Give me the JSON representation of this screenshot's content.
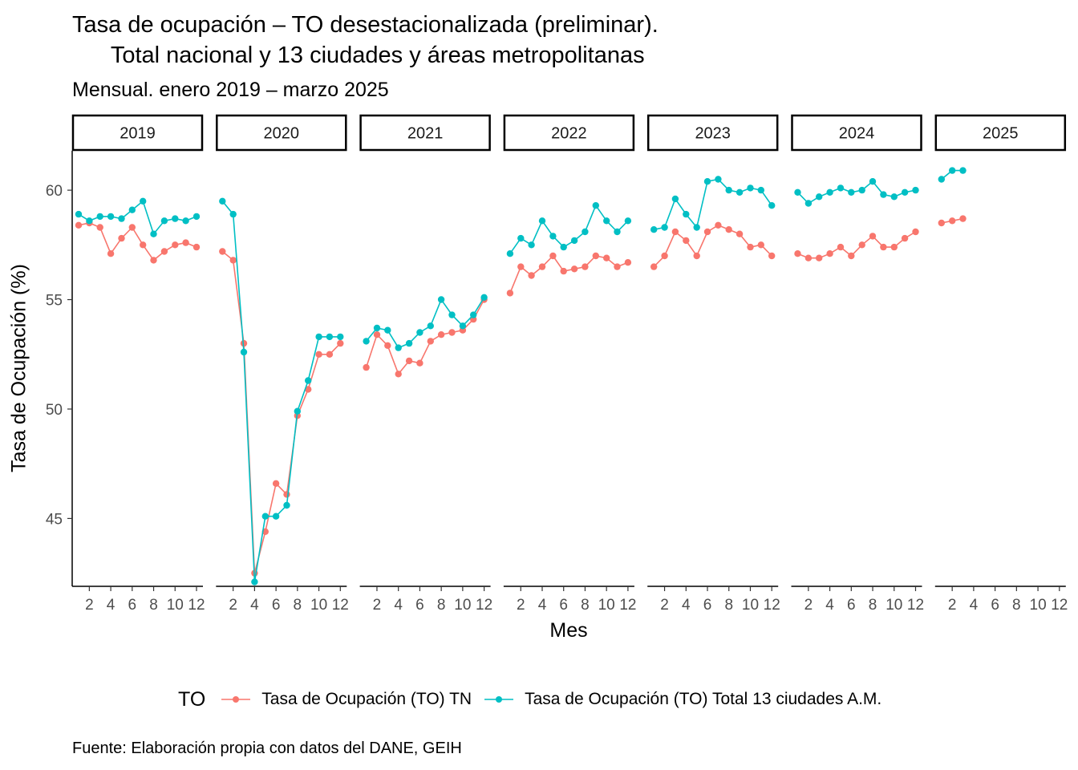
{
  "chart_data": {
    "type": "line",
    "title": "Tasa de ocupación – TO desestacionalizada (preliminar).\n      Total nacional y 13 ciudades y áreas metropolitanas",
    "subtitle": "Mensual. enero 2019 – marzo 2025",
    "xlabel": "Mes",
    "ylabel": "Tasa de Ocupación (%)",
    "caption": "Fuente: Elaboración propia con datos del DANE, GEIH",
    "legend_title": "TO",
    "legend_position": "bottom",
    "grid": false,
    "facets": [
      "2019",
      "2020",
      "2021",
      "2022",
      "2023",
      "2024",
      "2025"
    ],
    "x_range": [
      1,
      12
    ],
    "x_ticks": [
      2,
      4,
      6,
      8,
      10,
      12
    ],
    "ylim": [
      41.9,
      61.8
    ],
    "y_ticks": [
      45,
      50,
      55,
      60
    ],
    "series": [
      {
        "name": "Tasa de Ocupación (TO) TN",
        "color": "#F8766D",
        "values": {
          "2019": [
            58.4,
            58.5,
            58.3,
            57.1,
            57.8,
            58.3,
            57.5,
            56.8,
            57.2,
            57.5,
            57.6,
            57.4
          ],
          "2020": [
            57.2,
            56.8,
            53.0,
            42.5,
            44.4,
            46.6,
            46.1,
            49.7,
            50.9,
            52.5,
            52.5,
            53.0
          ],
          "2021": [
            51.9,
            53.4,
            52.9,
            51.6,
            52.2,
            52.1,
            53.1,
            53.4,
            53.5,
            53.6,
            54.1,
            55.0
          ],
          "2022": [
            55.3,
            56.5,
            56.1,
            56.5,
            57.0,
            56.3,
            56.4,
            56.5,
            57.0,
            56.9,
            56.5,
            56.7
          ],
          "2023": [
            56.5,
            57.0,
            58.1,
            57.7,
            57.0,
            58.1,
            58.4,
            58.2,
            58.0,
            57.4,
            57.5,
            57.0
          ],
          "2024": [
            57.1,
            56.9,
            56.9,
            57.1,
            57.4,
            57.0,
            57.5,
            57.9,
            57.4,
            57.4,
            57.8,
            58.1
          ],
          "2025": [
            58.5,
            58.6,
            58.7
          ]
        }
      },
      {
        "name": "Tasa de Ocupación (TO) Total 13 ciudades A.M.",
        "color": "#00BFC4",
        "values": {
          "2019": [
            58.9,
            58.6,
            58.8,
            58.8,
            58.7,
            59.1,
            59.5,
            58.0,
            58.6,
            58.7,
            58.6,
            58.8
          ],
          "2020": [
            59.5,
            58.9,
            52.6,
            42.1,
            45.1,
            45.1,
            45.6,
            49.9,
            51.3,
            53.3,
            53.3,
            53.3
          ],
          "2021": [
            53.1,
            53.7,
            53.6,
            52.8,
            53.0,
            53.5,
            53.8,
            55.0,
            54.3,
            53.8,
            54.3,
            55.1
          ],
          "2022": [
            57.1,
            57.8,
            57.5,
            58.6,
            57.9,
            57.4,
            57.7,
            58.1,
            59.3,
            58.6,
            58.1,
            58.6
          ],
          "2023": [
            58.2,
            58.3,
            59.6,
            58.9,
            58.3,
            60.4,
            60.5,
            60.0,
            59.9,
            60.1,
            60.0,
            59.3
          ],
          "2024": [
            59.9,
            59.4,
            59.7,
            59.9,
            60.1,
            59.9,
            60.0,
            60.4,
            59.8,
            59.7,
            59.9,
            60.0
          ],
          "2025": [
            60.5,
            60.9,
            60.9
          ]
        }
      }
    ]
  }
}
